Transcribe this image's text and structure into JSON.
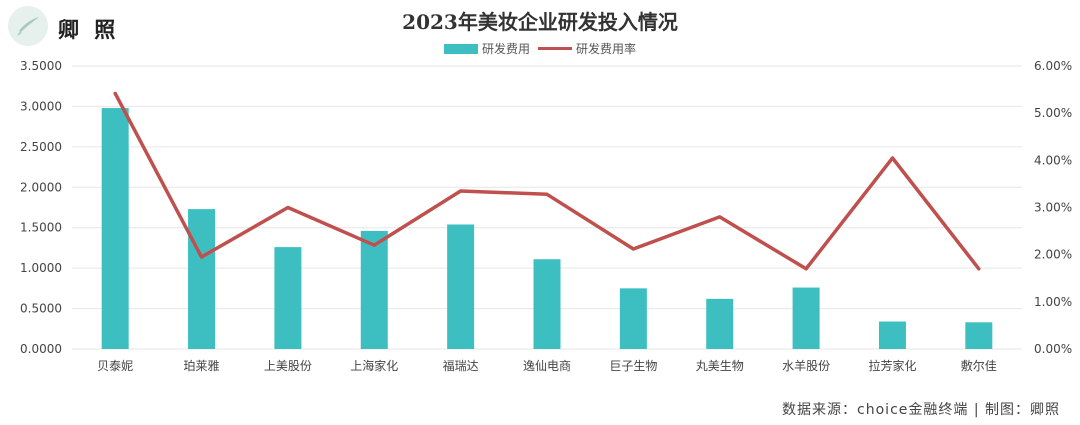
{
  "header": {
    "brand": "卿 照"
  },
  "footer": {
    "source": "数据来源：choice金融终端 | 制图：卿照"
  },
  "colors": {
    "bar": "#3dbfc1",
    "line": "#c0504d",
    "grid": "#e6e6e6",
    "axis_text": "#444444"
  },
  "chart_data": {
    "type": "bar",
    "title": "2023年美妆企业研发投入情况",
    "categories": [
      "贝泰妮",
      "珀莱雅",
      "上美股份",
      "上海家化",
      "福瑞达",
      "逸仙电商",
      "巨子生物",
      "丸美生物",
      "水羊股份",
      "拉芳家化",
      "敷尔佳"
    ],
    "series": [
      {
        "name": "研发费用",
        "type": "bar",
        "axis": "left",
        "values": [
          2.98,
          1.73,
          1.26,
          1.46,
          1.54,
          1.11,
          0.75,
          0.62,
          0.76,
          0.34,
          0.33
        ]
      },
      {
        "name": "研发费用率",
        "type": "line",
        "axis": "right",
        "values": [
          5.42,
          1.95,
          3.0,
          2.2,
          3.35,
          3.28,
          2.12,
          2.8,
          1.7,
          4.05,
          1.7
        ]
      }
    ],
    "y_left": {
      "ylim": [
        0,
        3.5
      ],
      "ticks": [
        "0.0000",
        "0.5000",
        "1.0000",
        "1.5000",
        "2.0000",
        "2.5000",
        "3.0000",
        "3.5000"
      ]
    },
    "y_right": {
      "ylim": [
        0,
        6
      ],
      "ticks": [
        "0.00%",
        "1.00%",
        "2.00%",
        "3.00%",
        "4.00%",
        "5.00%",
        "6.00%"
      ]
    },
    "grid": true,
    "legend": "top"
  }
}
